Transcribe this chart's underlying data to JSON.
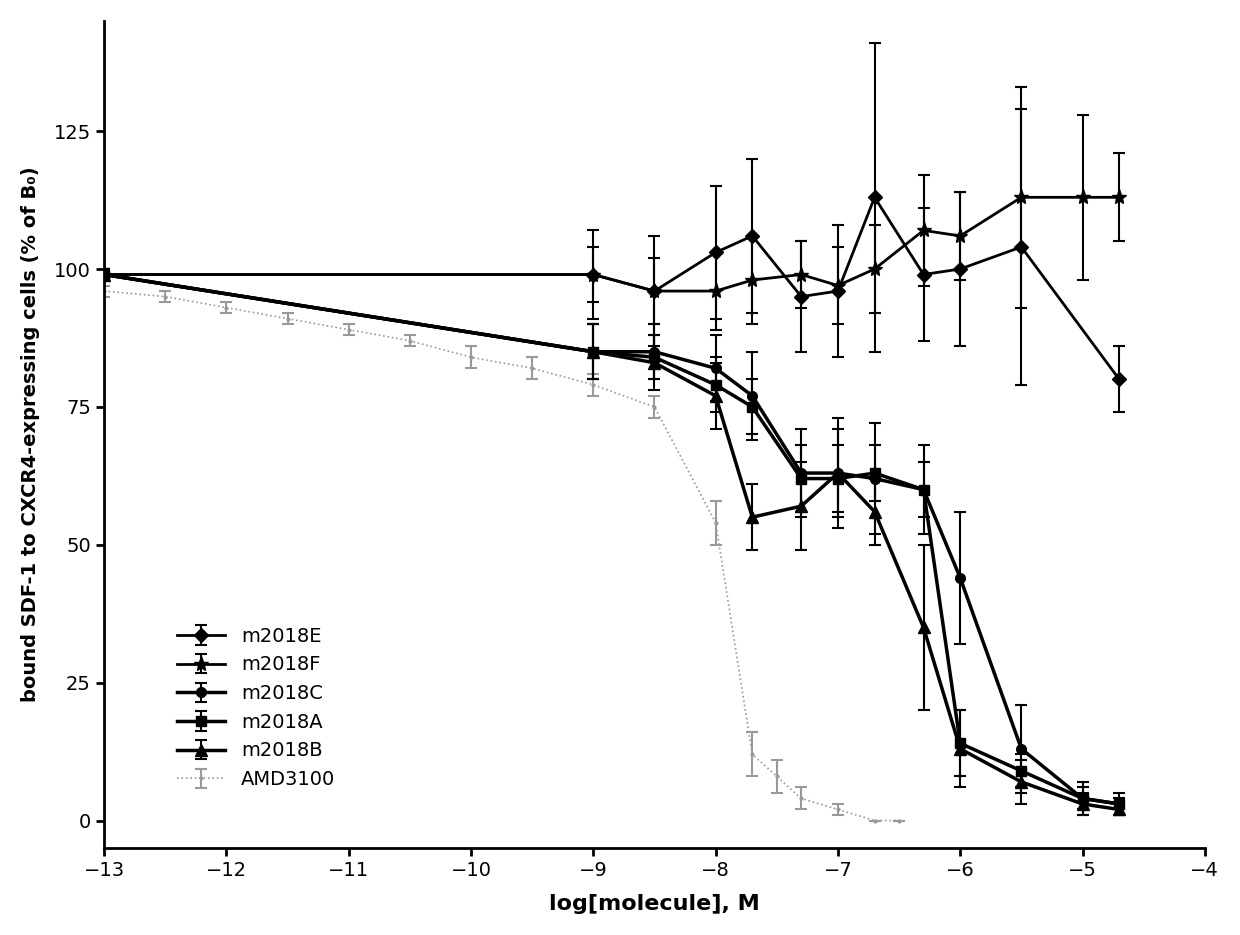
{
  "xlabel": "log[molecule], M",
  "ylabel": "bound SDF-1 to CXCR4-expressing cells (% of B₀)",
  "xlim": [
    -13,
    -4
  ],
  "ylim": [
    -5,
    145
  ],
  "xticks": [
    -13,
    -12,
    -11,
    -10,
    -9,
    -8,
    -7,
    -6,
    -5,
    -4
  ],
  "yticks": [
    0,
    25,
    50,
    75,
    100,
    125
  ],
  "background": "#ffffff",
  "series_order": [
    "m2018E",
    "m2018F",
    "m2018C",
    "m2018A",
    "m2018B",
    "AMD3100"
  ],
  "m2018E": {
    "x": [
      -13,
      -9,
      -8.5,
      -8,
      -7.7,
      -7.3,
      -7,
      -6.7,
      -6.3,
      -6,
      -5.5,
      -4.7
    ],
    "y": [
      99,
      99,
      96,
      103,
      106,
      95,
      96,
      113,
      99,
      100,
      104,
      80
    ],
    "yerr": [
      1,
      8,
      10,
      12,
      14,
      10,
      12,
      28,
      12,
      14,
      25,
      6
    ],
    "color": "#000000",
    "marker": "D",
    "markersize": 7,
    "lw": 2.0,
    "label": "m2018E"
  },
  "m2018F": {
    "x": [
      -13,
      -9,
      -8.5,
      -8,
      -7.7,
      -7.3,
      -7,
      -6.7,
      -6.3,
      -6,
      -5.5,
      -5.0,
      -4.7
    ],
    "y": [
      99,
      99,
      96,
      96,
      98,
      99,
      97,
      100,
      107,
      106,
      113,
      113,
      113
    ],
    "yerr": [
      1,
      5,
      6,
      7,
      8,
      6,
      7,
      8,
      10,
      8,
      20,
      15,
      8
    ],
    "color": "#000000",
    "marker": "*",
    "markersize": 11,
    "lw": 2.0,
    "label": "m2018F"
  },
  "m2018C": {
    "x": [
      -13,
      -9,
      -8.5,
      -8,
      -7.7,
      -7.3,
      -7,
      -6.7,
      -6.3,
      -6,
      -5.5,
      -5.0,
      -4.7
    ],
    "y": [
      99,
      85,
      85,
      82,
      77,
      63,
      63,
      62,
      60,
      44,
      13,
      4,
      3
    ],
    "yerr": [
      1,
      5,
      5,
      6,
      8,
      8,
      8,
      10,
      8,
      12,
      8,
      3,
      2
    ],
    "color": "#000000",
    "marker": "o",
    "markersize": 7,
    "lw": 2.5,
    "label": "m2018C"
  },
  "m2018A": {
    "x": [
      -13,
      -9,
      -8.5,
      -8,
      -7.7,
      -7.3,
      -7,
      -6.7,
      -6.3,
      -6,
      -5.5,
      -5.0,
      -4.7
    ],
    "y": [
      99,
      85,
      84,
      79,
      75,
      62,
      62,
      63,
      60,
      14,
      9,
      4,
      3
    ],
    "yerr": [
      1,
      5,
      4,
      5,
      5,
      6,
      6,
      5,
      5,
      6,
      3,
      2,
      1
    ],
    "color": "#000000",
    "marker": "s",
    "markersize": 7,
    "lw": 2.5,
    "label": "m2018A"
  },
  "m2018B": {
    "x": [
      -13,
      -9,
      -8.5,
      -8,
      -7.7,
      -7.3,
      -7,
      -6.7,
      -6.3,
      -6,
      -5.5,
      -5.0,
      -4.7
    ],
    "y": [
      99,
      85,
      83,
      77,
      55,
      57,
      63,
      56,
      35,
      13,
      7,
      3,
      2
    ],
    "yerr": [
      1,
      5,
      5,
      6,
      6,
      8,
      10,
      6,
      15,
      7,
      4,
      2,
      1
    ],
    "color": "#000000",
    "marker": "^",
    "markersize": 8,
    "lw": 2.5,
    "label": "m2018B"
  },
  "AMD3100": {
    "x": [
      -13,
      -12.5,
      -12,
      -11.5,
      -11,
      -10.5,
      -10,
      -9.5,
      -9,
      -8.5,
      -8,
      -7.7,
      -7.5,
      -7.3,
      -7,
      -6.7,
      -6.5
    ],
    "y": [
      96,
      95,
      93,
      91,
      89,
      87,
      84,
      82,
      79,
      75,
      54,
      12,
      8,
      4,
      2,
      0,
      0
    ],
    "yerr": [
      1,
      1,
      1,
      1,
      1,
      1,
      2,
      2,
      2,
      2,
      4,
      4,
      3,
      2,
      1,
      0,
      0
    ],
    "color": "#999999",
    "marker": ".",
    "markersize": 4,
    "lw": 1.2,
    "label": "AMD3100",
    "linestyle": "dotted"
  }
}
